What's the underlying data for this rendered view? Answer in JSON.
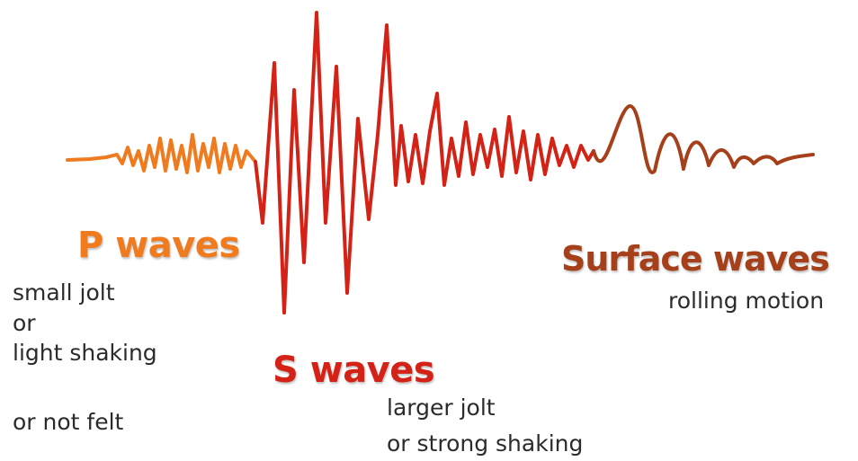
{
  "colors": {
    "p_wave": "#f07a1e",
    "s_wave": "#d42216",
    "surface_wave": "#a5401a",
    "description_text": "#2b2b2b",
    "background": "#ffffff"
  },
  "p_waves": {
    "title": "P waves",
    "lines": [
      "small jolt",
      "or",
      "light shaking",
      "or not felt"
    ]
  },
  "s_waves": {
    "title": "S waves",
    "lines": [
      "larger jolt",
      "or strong shaking"
    ]
  },
  "surface_waves": {
    "title": "Surface waves",
    "lines": [
      "rolling motion"
    ]
  }
}
